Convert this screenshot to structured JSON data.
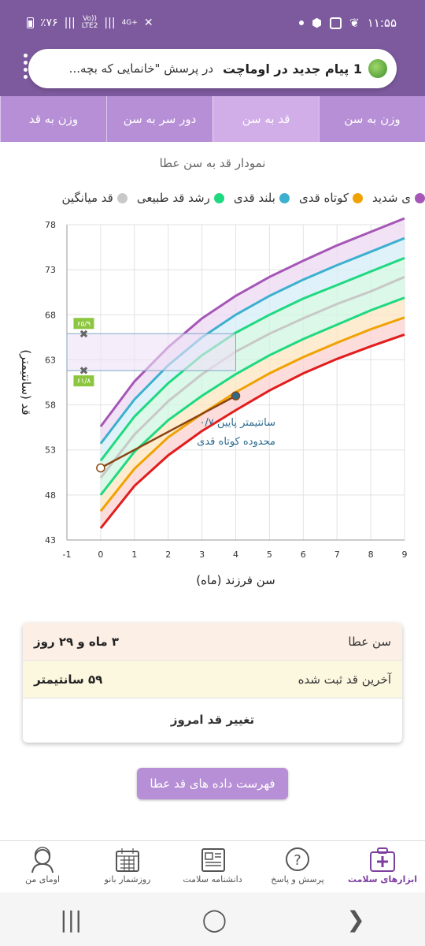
{
  "status_bar": {
    "time": "۱۱:۵۵",
    "battery": "٪۷۶",
    "network1": "Vo))",
    "network2": "LTE2",
    "network3": "4G+"
  },
  "notification": {
    "title": "1 پیام جدید در اوماچت",
    "body": "در پرسش \"خانمایی که بچه..."
  },
  "tabs": [
    {
      "label": "وزن به سن"
    },
    {
      "label": "قد به سن"
    },
    {
      "label": "دور سر به سن"
    },
    {
      "label": "وزن به قد"
    }
  ],
  "chart_title": "نمودار قد به سن عطا",
  "legend": [
    {
      "label": "ی شدید",
      "color": "#a556b6"
    },
    {
      "label": "کوتاه قدی",
      "color": "#f0a202"
    },
    {
      "label": "بلند قدی",
      "color": "#3cb0cf"
    },
    {
      "label": "رشد قد طبیعی",
      "color": "#1fd981"
    },
    {
      "label": "قد میانگین",
      "color": "#c8c8c8"
    }
  ],
  "chart_data": {
    "type": "line",
    "xlabel": "سن فرزند (ماه)",
    "ylabel": "قد (سانتیمتر)",
    "xlim": [
      -1,
      9
    ],
    "ylim": [
      43,
      78
    ],
    "x_ticks": [
      "-1",
      "0",
      "1",
      "2",
      "3",
      "4",
      "5",
      "6",
      "7",
      "8",
      "9"
    ],
    "y_ticks": [
      "43",
      "48",
      "53",
      "58",
      "63",
      "68",
      "73",
      "78"
    ],
    "x": [
      0,
      1,
      2,
      3,
      4,
      5,
      6,
      7,
      8,
      9
    ],
    "series": [
      {
        "color": "#e11d1d",
        "values": [
          44.3,
          49.0,
          52.4,
          55.1,
          57.4,
          59.6,
          61.5,
          63.1,
          64.5,
          65.8
        ]
      },
      {
        "color": "#f0a202",
        "values": [
          46.2,
          50.9,
          54.4,
          57.0,
          59.4,
          61.5,
          63.3,
          64.9,
          66.4,
          67.7
        ]
      },
      {
        "color": "#1fd981",
        "values": [
          48.0,
          52.8,
          56.3,
          59.0,
          61.4,
          63.5,
          65.3,
          66.9,
          68.5,
          69.9
        ]
      },
      {
        "color": "#c8c8c8",
        "values": [
          49.9,
          54.7,
          58.4,
          61.4,
          63.9,
          65.9,
          67.6,
          69.2,
          70.6,
          72.2
        ]
      },
      {
        "color": "#1fd981",
        "values": [
          51.8,
          56.7,
          60.4,
          63.5,
          66.0,
          68.0,
          69.8,
          71.3,
          72.8,
          74.3
        ]
      },
      {
        "color": "#3cb0cf",
        "values": [
          53.7,
          58.6,
          62.4,
          65.5,
          68.0,
          70.1,
          71.9,
          73.5,
          75.0,
          76.5
        ]
      },
      {
        "color": "#a556b6",
        "values": [
          55.6,
          60.6,
          64.4,
          67.6,
          70.1,
          72.2,
          74.0,
          75.7,
          77.2,
          78.7
        ]
      }
    ],
    "child": {
      "x": [
        0,
        4
      ],
      "y": [
        51.0,
        59.0
      ],
      "color": "#8a4513"
    },
    "band_markers": [
      {
        "label": "۶۵/۹",
        "y": 65.9
      },
      {
        "label": "۶۱/۸",
        "y": 61.8
      }
    ],
    "annotation": [
      "۰/۷ سانتیمتر پایین",
      "محدوده کوتاه قدی"
    ]
  },
  "info": {
    "age_label": "سن عطا",
    "age_value": "۳ ماه و ۲۹ روز",
    "height_label": "آخرین قد ثبت شده",
    "height_value": "۵۹ سانتیمتر",
    "change_label": "تغییر قد امروز"
  },
  "list_button": "فهرست داده های قد عطا",
  "bottom_nav": [
    {
      "label": "ابزارهای سلامت",
      "icon": "first-aid-kit-icon"
    },
    {
      "label": "پرسش و پاسخ",
      "icon": "question-bubble-icon"
    },
    {
      "label": "دانشنامه سلامت",
      "icon": "newspaper-icon"
    },
    {
      "label": "روزشمار بانو",
      "icon": "calendar-icon"
    },
    {
      "label": "اومای من",
      "icon": "woman-avatar-icon"
    }
  ]
}
